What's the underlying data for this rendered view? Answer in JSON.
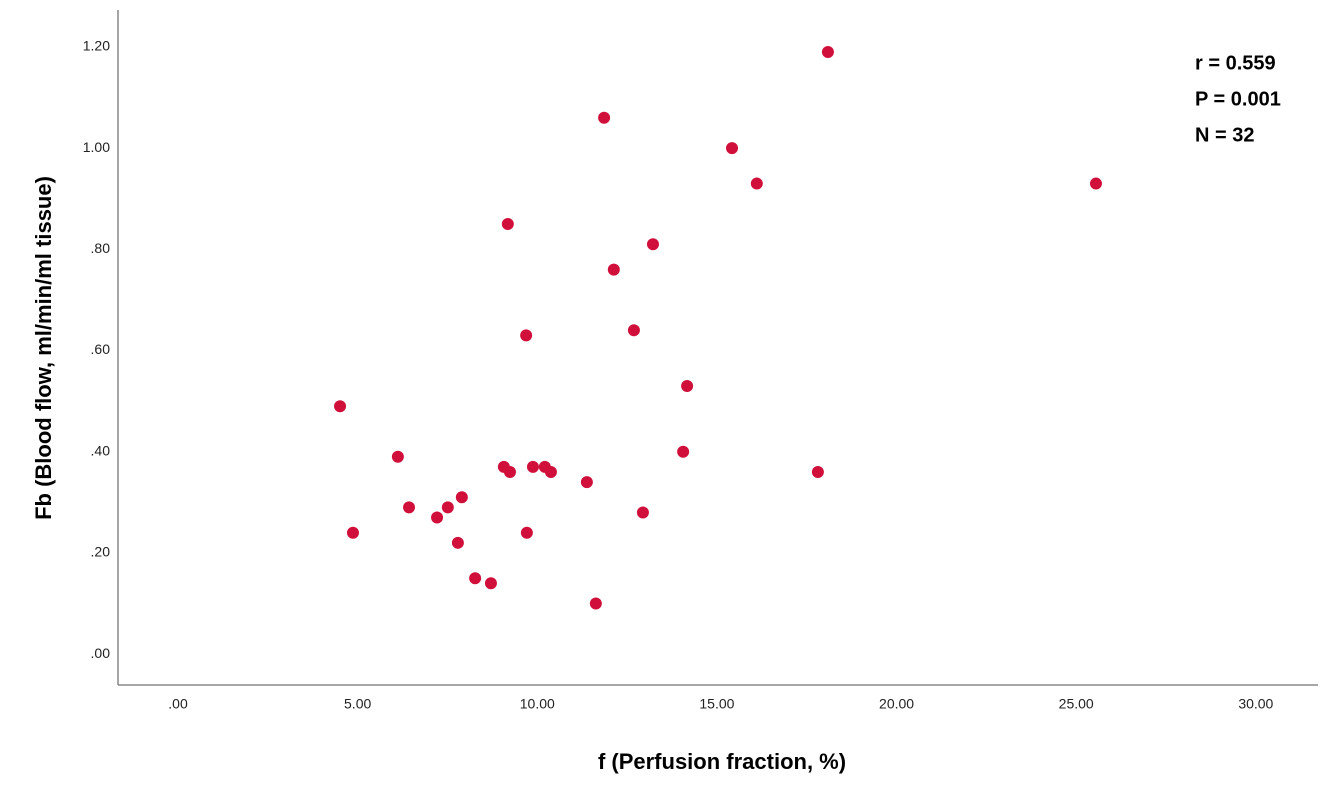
{
  "chart_data": {
    "type": "scatter",
    "x_label": "f (Perfusion fraction, %)",
    "y_label": "Fb (Blood flow, ml/min/ml tissue)",
    "annotations": [
      "r = 0.559",
      "P = 0.001",
      "N = 32"
    ],
    "color": "#d0103a",
    "x": [
      4.51,
      4.87,
      6.12,
      6.43,
      7.21,
      7.51,
      7.79,
      7.9,
      8.27,
      8.71,
      9.18,
      9.07,
      9.24,
      9.69,
      9.71,
      9.88,
      10.21,
      10.38,
      11.38,
      11.63,
      11.86,
      12.13,
      12.69,
      12.94,
      13.22,
      14.06,
      14.17,
      15.42,
      16.11,
      17.81,
      18.09,
      25.55
    ],
    "values": [
      0.49,
      0.24,
      0.39,
      0.29,
      0.27,
      0.29,
      0.22,
      0.31,
      0.15,
      0.14,
      0.85,
      0.37,
      0.36,
      0.63,
      0.24,
      0.37,
      0.37,
      0.36,
      0.34,
      0.1,
      1.06,
      0.76,
      0.64,
      0.28,
      0.81,
      0.4,
      0.53,
      1.0,
      0.93,
      0.36,
      1.19,
      0.93
    ],
    "xlim": [
      -1.67,
      31.73
    ],
    "ylim": [
      -0.061,
      1.273
    ],
    "xticks": [
      {
        "value": 0,
        "label": ".00"
      },
      {
        "value": 5,
        "label": "5.00"
      },
      {
        "value": 10,
        "label": "10.00"
      },
      {
        "value": 15,
        "label": "15.00"
      },
      {
        "value": 20,
        "label": "20.00"
      },
      {
        "value": 25,
        "label": "25.00"
      },
      {
        "value": 30,
        "label": "30.00"
      }
    ],
    "yticks": [
      {
        "value": 0,
        "label": ".00"
      },
      {
        "value": 0.2,
        "label": ".20"
      },
      {
        "value": 0.4,
        "label": ".40"
      },
      {
        "value": 0.6,
        "label": ".60"
      },
      {
        "value": 0.8,
        "label": ".80"
      },
      {
        "value": 1.0,
        "label": "1.00"
      },
      {
        "value": 1.2,
        "label": "1.20"
      }
    ]
  }
}
